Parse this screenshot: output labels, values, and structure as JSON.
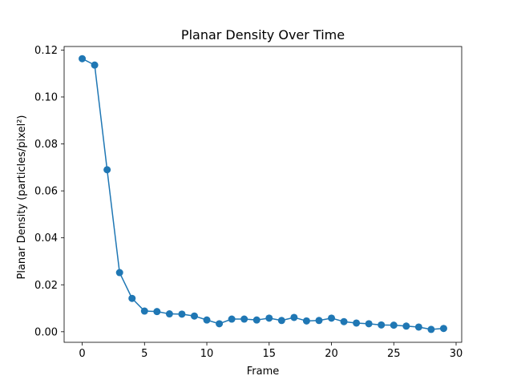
{
  "chart_data": {
    "type": "line",
    "title": "Planar Density Over Time",
    "xlabel": "Frame",
    "ylabel": "Planar Density (particles/pixel²)",
    "xlim": [
      -1.45,
      30.45
    ],
    "ylim": [
      -0.0045,
      0.1215
    ],
    "xticks": [
      0,
      5,
      10,
      15,
      20,
      25,
      30
    ],
    "xtick_labels": [
      "0",
      "5",
      "10",
      "15",
      "20",
      "25",
      "30"
    ],
    "yticks": [
      0.0,
      0.02,
      0.04,
      0.06,
      0.08,
      0.1,
      0.12
    ],
    "ytick_labels": [
      "0.00",
      "0.02",
      "0.04",
      "0.06",
      "0.08",
      "0.10",
      "0.12"
    ],
    "grid": false,
    "legend": "none",
    "series": [
      {
        "color": "#1f77b4",
        "marker": "circle",
        "x": [
          0,
          1,
          2,
          3,
          4,
          5,
          6,
          7,
          8,
          9,
          10,
          11,
          12,
          13,
          14,
          15,
          16,
          17,
          18,
          19,
          20,
          21,
          22,
          23,
          24,
          25,
          26,
          27,
          28,
          29
        ],
        "y": [
          0.1163,
          0.1136,
          0.069,
          0.0252,
          0.0142,
          0.0088,
          0.0086,
          0.0076,
          0.0075,
          0.0067,
          0.005,
          0.0034,
          0.0054,
          0.0054,
          0.005,
          0.0058,
          0.0048,
          0.0061,
          0.0046,
          0.0048,
          0.0058,
          0.0043,
          0.0037,
          0.0034,
          0.0029,
          0.0028,
          0.0024,
          0.002,
          0.001,
          0.0014
        ]
      }
    ]
  }
}
